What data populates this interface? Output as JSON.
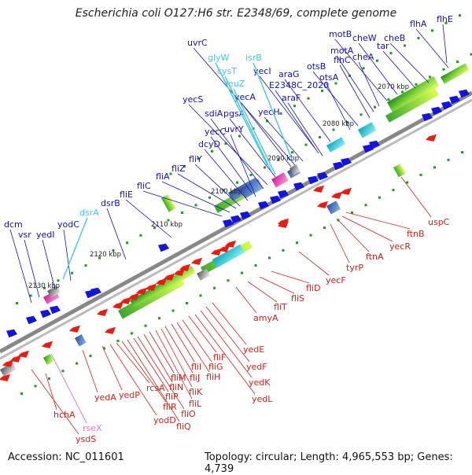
{
  "title": "Escherichia coli O127:H6 str. E2348/69, complete genome",
  "footer": {
    "accession": "Accession: NC_011601",
    "summary": "Topology: circular; Length: 4,965,553 bp; Genes: 4,739"
  },
  "colors": {
    "forward_label": "#1010cc",
    "reverse_label": "#d8201a",
    "rna_label": "#45c6e4",
    "pseudo_label": "#f07ac0",
    "backbone": "#7a7a7a",
    "gc_dot": "#1e9a1e"
  },
  "ticks": [
    "2070 kbp",
    "2080 kbp",
    "2090 kbp",
    "2100 kbp",
    "2110 kbp",
    "2120 kbp",
    "2130 kbp"
  ],
  "forward_genes": [
    "flhE",
    "flhA",
    "cheB",
    "tar",
    "cheW",
    "motB",
    "cheA",
    "motA",
    "flhC",
    "otsB",
    "otsA",
    "araG",
    "yecI",
    "E2348C_2020",
    "araF",
    "uvrC",
    "yecA",
    "pgsA",
    "yecH",
    "yecS",
    "sdiA",
    "yecC",
    "uvrY",
    "dcyD",
    "fliY",
    "fliZ",
    "fliA",
    "fliC",
    "fliE",
    "dsrB",
    "yodC",
    "yedI",
    "vsr",
    "dcm"
  ],
  "rna_genes": [
    "glyW",
    "isrB",
    "cysT",
    "leuZ",
    "dsrA"
  ],
  "pseudo_genes": [
    "rseX"
  ],
  "reverse_genes": [
    "uspC",
    "ftnB",
    "yecR",
    "ftnA",
    "tyrP",
    "yecF",
    "fliD",
    "fliS",
    "fliT",
    "amyA",
    "yedE",
    "yedF",
    "yedK",
    "yedL",
    "fliF",
    "fliG",
    "fliH",
    "fliI",
    "fliJ",
    "fliK",
    "fliL",
    "fliM",
    "fliN",
    "fliO",
    "fliP",
    "fliQ",
    "fliR",
    "rcsA",
    "yodD",
    "yedP",
    "yedA",
    "hchA",
    "ysdS"
  ]
}
